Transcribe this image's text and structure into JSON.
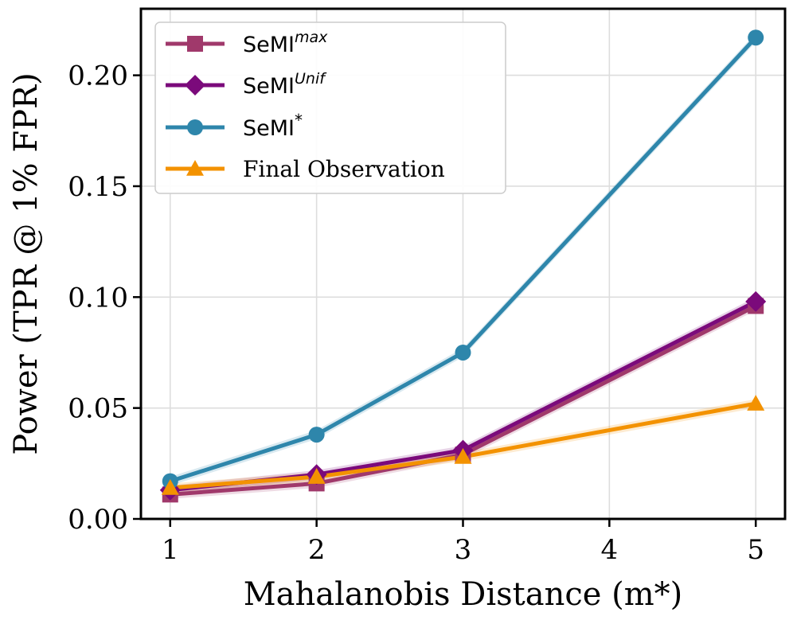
{
  "chart_data": {
    "type": "line",
    "title": "",
    "xlabel": "Mahalanobis Distance (m*)",
    "ylabel": "Power (TPR @ 1% FPR)",
    "x_ticks": [
      "1",
      "2",
      "3",
      "4",
      "5"
    ],
    "y_ticks": [
      "0.00",
      "0.05",
      "0.10",
      "0.15",
      "0.20"
    ],
    "xlim": [
      0.8,
      5.2
    ],
    "ylim": [
      0.0,
      0.23
    ],
    "grid": true,
    "legend_position": "top-left",
    "series": [
      {
        "name": "SeMI",
        "name_superscript": "max",
        "color": "#a0396b",
        "marker": "square",
        "x": [
          1,
          2,
          3,
          5
        ],
        "y": [
          0.011,
          0.016,
          0.029,
          0.096
        ],
        "band": 0.002
      },
      {
        "name": "SeMI",
        "name_superscript": "Unif",
        "color": "#7b0a7b",
        "marker": "diamond",
        "x": [
          1,
          2,
          3,
          5
        ],
        "y": [
          0.013,
          0.02,
          0.031,
          0.098
        ],
        "band": 0.002
      },
      {
        "name": "SeMI",
        "name_superscript": "*",
        "color": "#2e86ab",
        "marker": "circle",
        "x": [
          1,
          2,
          3,
          5
        ],
        "y": [
          0.017,
          0.038,
          0.075,
          0.217
        ],
        "band": 0.002
      },
      {
        "name": "Final Observation",
        "name_superscript": "",
        "color": "#f39200",
        "marker": "triangle",
        "x": [
          1,
          2,
          3,
          5
        ],
        "y": [
          0.014,
          0.019,
          0.028,
          0.052
        ],
        "band": 0.002
      }
    ]
  }
}
